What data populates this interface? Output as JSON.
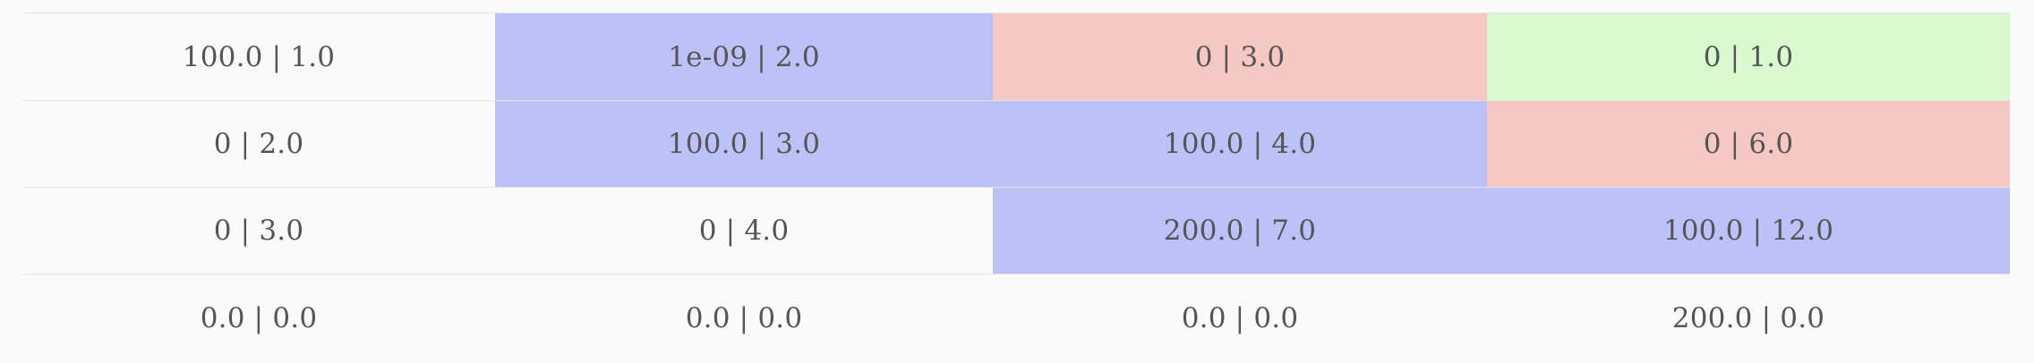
{
  "colors": {
    "blue": "#bcc2f8",
    "red": "#f6c8c3",
    "green": "#d9fad0",
    "none": "#fafafa",
    "text": "#555555",
    "grid_line": "#e4e4e4"
  },
  "rows": [
    {
      "cells": [
        {
          "text": "100.0 | 1.0",
          "fill": "none"
        },
        {
          "text": "1e-09 | 2.0",
          "fill": "blue"
        },
        {
          "text": "0 | 3.0",
          "fill": "red"
        },
        {
          "text": "0 | 1.0",
          "fill": "green"
        }
      ]
    },
    {
      "cells": [
        {
          "text": "0 | 2.0",
          "fill": "none"
        },
        {
          "text": "100.0 | 3.0",
          "fill": "blue"
        },
        {
          "text": "100.0 | 4.0",
          "fill": "blue"
        },
        {
          "text": "0 | 6.0",
          "fill": "red"
        }
      ]
    },
    {
      "cells": [
        {
          "text": "0 | 3.0",
          "fill": "none"
        },
        {
          "text": "0 | 4.0",
          "fill": "none"
        },
        {
          "text": "200.0 | 7.0",
          "fill": "blue"
        },
        {
          "text": "100.0 | 12.0",
          "fill": "blue"
        }
      ]
    },
    {
      "cells": [
        {
          "text": "0.0 | 0.0",
          "fill": "none"
        },
        {
          "text": "0.0 | 0.0",
          "fill": "none"
        },
        {
          "text": "0.0 | 0.0",
          "fill": "none"
        },
        {
          "text": "200.0 | 0.0",
          "fill": "none"
        }
      ]
    }
  ]
}
